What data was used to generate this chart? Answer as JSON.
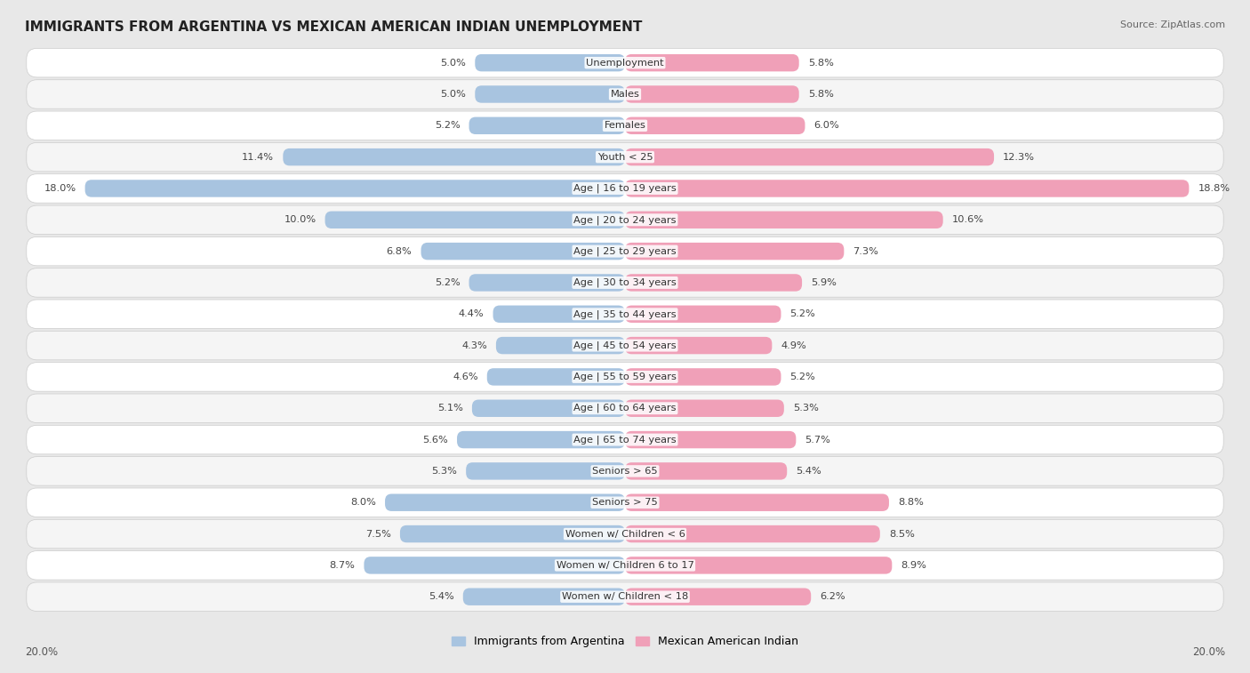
{
  "title": "IMMIGRANTS FROM ARGENTINA VS MEXICAN AMERICAN INDIAN UNEMPLOYMENT",
  "source": "Source: ZipAtlas.com",
  "categories": [
    "Unemployment",
    "Males",
    "Females",
    "Youth < 25",
    "Age | 16 to 19 years",
    "Age | 20 to 24 years",
    "Age | 25 to 29 years",
    "Age | 30 to 34 years",
    "Age | 35 to 44 years",
    "Age | 45 to 54 years",
    "Age | 55 to 59 years",
    "Age | 60 to 64 years",
    "Age | 65 to 74 years",
    "Seniors > 65",
    "Seniors > 75",
    "Women w/ Children < 6",
    "Women w/ Children 6 to 17",
    "Women w/ Children < 18"
  ],
  "left_values": [
    5.0,
    5.0,
    5.2,
    11.4,
    18.0,
    10.0,
    6.8,
    5.2,
    4.4,
    4.3,
    4.6,
    5.1,
    5.6,
    5.3,
    8.0,
    7.5,
    8.7,
    5.4
  ],
  "right_values": [
    5.8,
    5.8,
    6.0,
    12.3,
    18.8,
    10.6,
    7.3,
    5.9,
    5.2,
    4.9,
    5.2,
    5.3,
    5.7,
    5.4,
    8.8,
    8.5,
    8.9,
    6.2
  ],
  "left_color": "#a8c4e0",
  "right_color": "#f0a0b8",
  "max_val": 20.0,
  "background_color": "#e8e8e8",
  "card_color_even": "#ffffff",
  "card_color_odd": "#f5f5f5",
  "legend_left_label": "Immigrants from Argentina",
  "legend_right_label": "Mexican American Indian",
  "axis_label": "20.0%"
}
